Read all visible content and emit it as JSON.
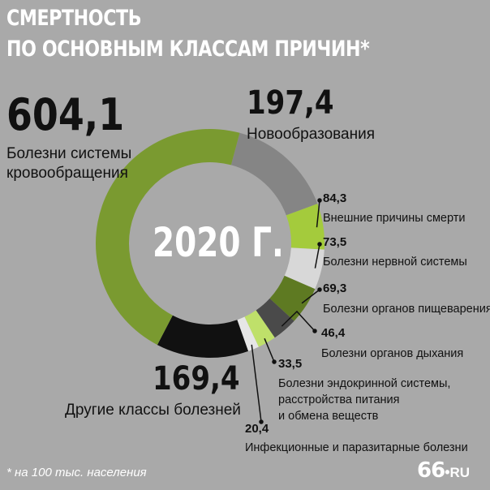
{
  "title": {
    "line1": "СМЕРТНОСТЬ",
    "line2": "ПО ОСНОВНЫМ КЛАССАМ ПРИЧИН*"
  },
  "center_label": "2020 Г.",
  "footnote": "* на 100 тыс. населения",
  "logo": {
    "num": "66",
    "dot": "•",
    "ru": "RU"
  },
  "chart_data": {
    "type": "pie",
    "title": "СМЕРТНОСТЬ ПО ОСНОВНЫМ КЛАССАМ ПРИЧИН*",
    "unit": "на 100 тыс. населения",
    "categories": [
      "Болезни системы кровообращения",
      "Новообразования",
      "Внешние причины смерти",
      "Болезни нервной системы",
      "Болезни органов пищеварения",
      "Болезни органов дыхания",
      "Болезни эндокринной системы, расстройства питания и обмена веществ",
      "Инфекционные и паразитарные болезни",
      "Другие классы болезней"
    ],
    "values": [
      604.1,
      197.4,
      84.3,
      73.5,
      69.3,
      46.4,
      33.5,
      20.4,
      169.4
    ],
    "value_labels": [
      "604,1",
      "197,4",
      "84,3",
      "73,5",
      "69,3",
      "46,4",
      "33,5",
      "20,4",
      "169,4"
    ],
    "colors": [
      "#7a9a30",
      "#858585",
      "#a4cb3c",
      "#d8d8d8",
      "#5e7a22",
      "#4a4a4a",
      "#bfe06a",
      "#e6e6e6",
      "#111111"
    ],
    "style": "donut"
  },
  "labels": {
    "circ_lines": [
      "Болезни системы",
      "кровообращения"
    ],
    "neo": "Новообразования",
    "ext": "Внешние причины смерти",
    "nerv": "Болезни нервной системы",
    "dig": "Болезни органов пищеварения",
    "resp": "Болезни органов дыхания",
    "endo_lines": [
      "Болезни эндокринной системы,",
      "расстройства питания",
      "и обмена веществ"
    ],
    "inf": "Инфекционные и паразитарные болезни",
    "other": "Другие классы болезней"
  }
}
